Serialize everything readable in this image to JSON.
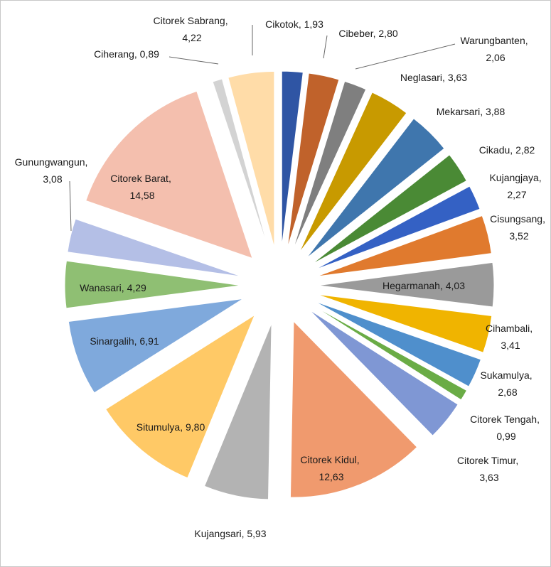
{
  "chart_data": {
    "type": "pie",
    "label_separator": ", ",
    "categories": [
      "Cikotok",
      "Cibeber",
      "Warungbanten",
      "Neglasari",
      "Mekarsari",
      "Cikadu",
      "Kujangjaya",
      "Cisungsang",
      "Hegarmanah",
      "Cihambali",
      "Sukamulya",
      "Citorek Tengah",
      "Citorek Timur",
      "Citorek Kidul",
      "Kujangsari",
      "Situmulya",
      "Sinargalih",
      "Wanasari",
      "Gunungwangun",
      "Citorek Barat",
      "Ciherang",
      "Citorek Sabrang"
    ],
    "values": [
      1.93,
      2.8,
      2.06,
      3.63,
      3.88,
      2.82,
      2.27,
      3.52,
      4.03,
      3.41,
      2.68,
      0.99,
      3.63,
      12.63,
      5.93,
      9.8,
      6.91,
      4.29,
      3.08,
      14.58,
      0.89,
      4.22
    ],
    "value_labels": [
      "1,93",
      "2,80",
      "2,06",
      "3,63",
      "3,88",
      "2,82",
      "2,27",
      "3,52",
      "4,03",
      "3,41",
      "2,68",
      "0,99",
      "3,63",
      "12,63",
      "5,93",
      "9,80",
      "6,91",
      "4,29",
      "3,08",
      "14,58",
      "0,89",
      "4,22"
    ],
    "colors": [
      "#2f55a4",
      "#c0622b",
      "#7f7f7f",
      "#c89a00",
      "#3f76ad",
      "#4a8a35",
      "#3461c4",
      "#e07a2e",
      "#9a9a9a",
      "#f0b400",
      "#4f8fcc",
      "#6aac46",
      "#7f97d4",
      "#f09a6e",
      "#b3b3b3",
      "#ffc966",
      "#7fa9dc",
      "#8fbf73",
      "#b4bfe6",
      "#f4bfae",
      "#d3d3d3",
      "#ffdca8"
    ]
  }
}
